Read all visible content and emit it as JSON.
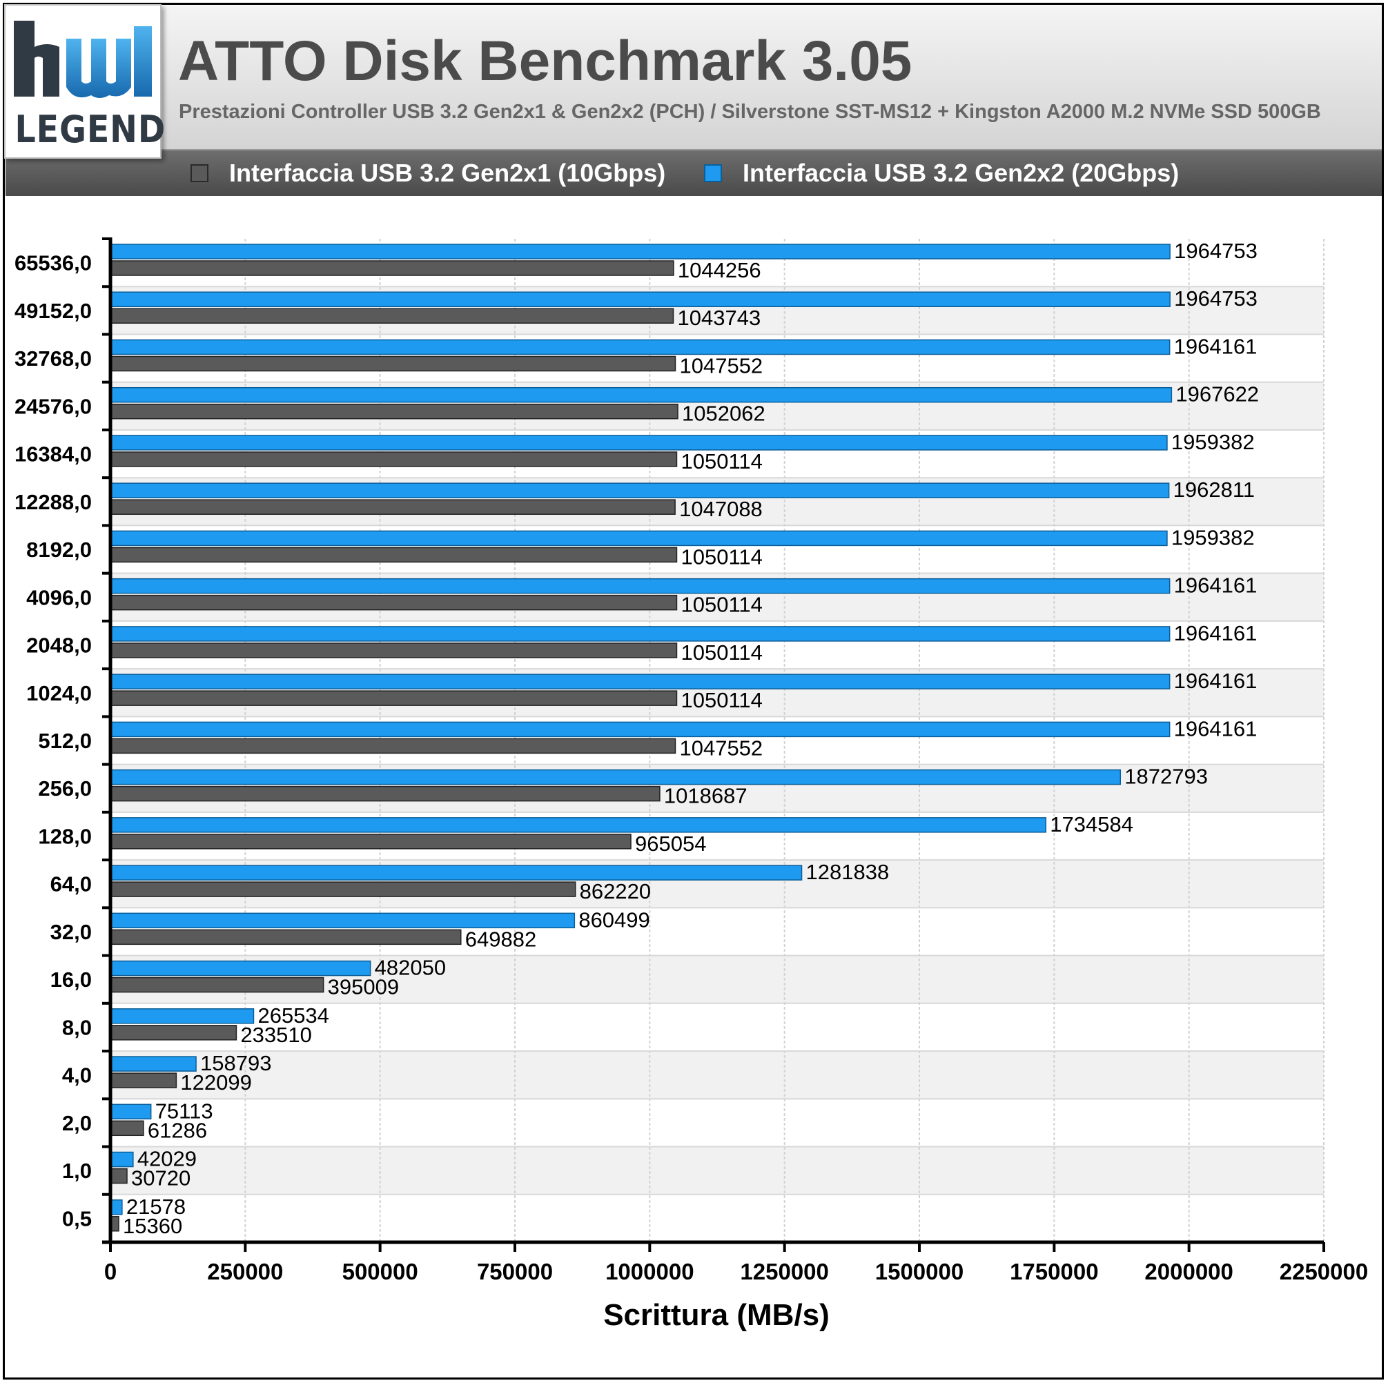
{
  "header": {
    "title": "ATTO Disk Benchmark 3.05",
    "subtitle": "Prestazioni Controller USB 3.2 Gen2x1 & Gen2x2 (PCH) / Silverstone SST-MS12 + Kingston A2000 M.2 NVMe SSD 500GB",
    "logo_text": "LEGEND",
    "logo_icon": "hwlegend-logo-icon"
  },
  "colors": {
    "gen2x1": "#5a5a5a",
    "gen2x2": "#1e9bf0",
    "logo_blue": "#1b7fc4"
  },
  "chart_data": {
    "type": "bar",
    "orientation": "horizontal",
    "title": "ATTO Disk Benchmark 3.05",
    "subtitle": "Prestazioni Controller USB 3.2 Gen2x1 & Gen2x2 (PCH) / Silverstone SST-MS12 + Kingston A2000 M.2 NVMe SSD 500GB",
    "xlabel": "Scrittura (MB/s)",
    "ylabel": "",
    "xlim": [
      0,
      2250000
    ],
    "xticks": [
      "0",
      "250000",
      "500000",
      "750000",
      "1000000",
      "1250000",
      "1500000",
      "1750000",
      "2000000",
      "2250000"
    ],
    "grid": true,
    "legend_position": "top",
    "categories": [
      "65536,0",
      "49152,0",
      "32768,0",
      "24576,0",
      "16384,0",
      "12288,0",
      "8192,0",
      "4096,0",
      "2048,0",
      "1024,0",
      "512,0",
      "256,0",
      "128,0",
      "64,0",
      "32,0",
      "16,0",
      "8,0",
      "4,0",
      "2,0",
      "1,0",
      "0,5"
    ],
    "series": [
      {
        "name": "Interfaccia USB 3.2 Gen2x2 (20Gbps)",
        "color": "#1e9bf0",
        "values": [
          1964753,
          1964753,
          1964161,
          1967622,
          1959382,
          1962811,
          1959382,
          1964161,
          1964161,
          1964161,
          1964161,
          1872793,
          1734584,
          1281838,
          860499,
          482050,
          265534,
          158793,
          75113,
          42029,
          21578
        ]
      },
      {
        "name": "Interfaccia USB 3.2 Gen2x1 (10Gbps)",
        "color": "#5a5a5a",
        "values": [
          1044256,
          1043743,
          1047552,
          1052062,
          1050114,
          1047088,
          1050114,
          1050114,
          1050114,
          1050114,
          1047552,
          1018687,
          965054,
          862220,
          649882,
          395009,
          233510,
          122099,
          61286,
          30720,
          15360
        ]
      }
    ]
  }
}
